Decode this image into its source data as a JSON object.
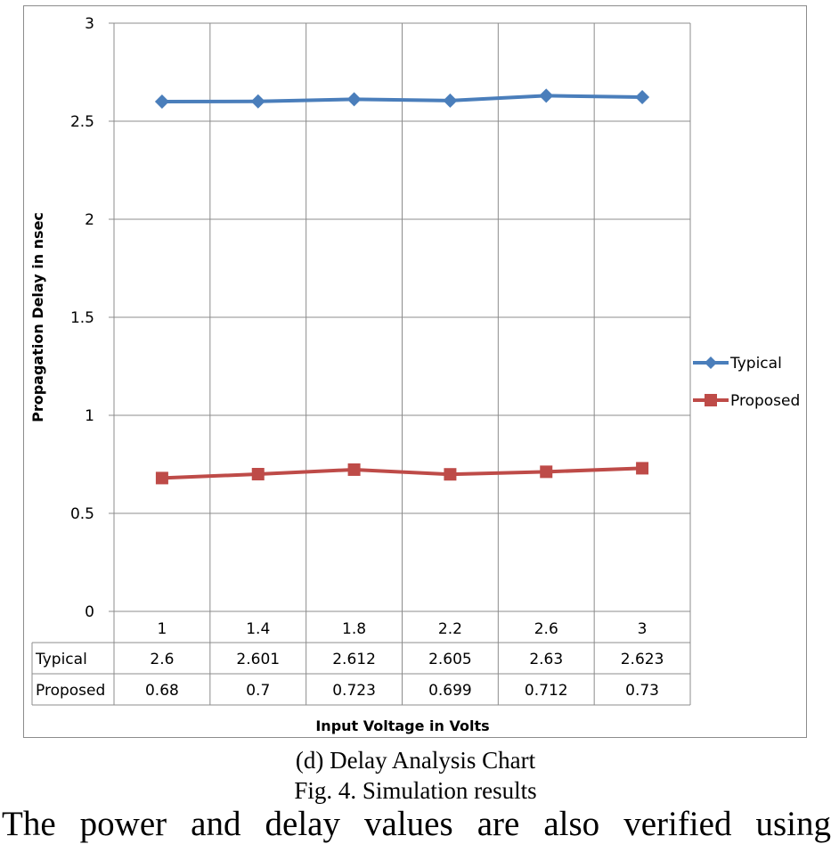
{
  "chart_data": {
    "type": "line",
    "title": "",
    "xlabel": "Input Voltage in Volts",
    "ylabel": "Propagation Delay in nsec",
    "categories": [
      "1",
      "1.4",
      "1.8",
      "2.2",
      "2.6",
      "3"
    ],
    "ylim": [
      0,
      3
    ],
    "yticks": [
      "0",
      "0.5",
      "1",
      "1.5",
      "2",
      "2.5",
      "3"
    ],
    "grid": true,
    "legend_position": "right",
    "series": [
      {
        "name": "Typical",
        "values": [
          2.6,
          2.601,
          2.612,
          2.605,
          2.63,
          2.623
        ],
        "labels": [
          "2.6",
          "2.601",
          "2.612",
          "2.605",
          "2.63",
          "2.623"
        ],
        "color": "#4a7ebb",
        "marker": "diamond"
      },
      {
        "name": "Proposed",
        "values": [
          0.68,
          0.7,
          0.723,
          0.699,
          0.712,
          0.73
        ],
        "labels": [
          "0.68",
          "0.7",
          "0.723",
          "0.699",
          "0.712",
          "0.73"
        ],
        "color": "#be4b48",
        "marker": "square"
      }
    ]
  },
  "captions": {
    "sub": "(d) Delay Analysis Chart",
    "figure": "Fig. 4. Simulation results"
  },
  "body_text": "The power and delay values are also verified using"
}
